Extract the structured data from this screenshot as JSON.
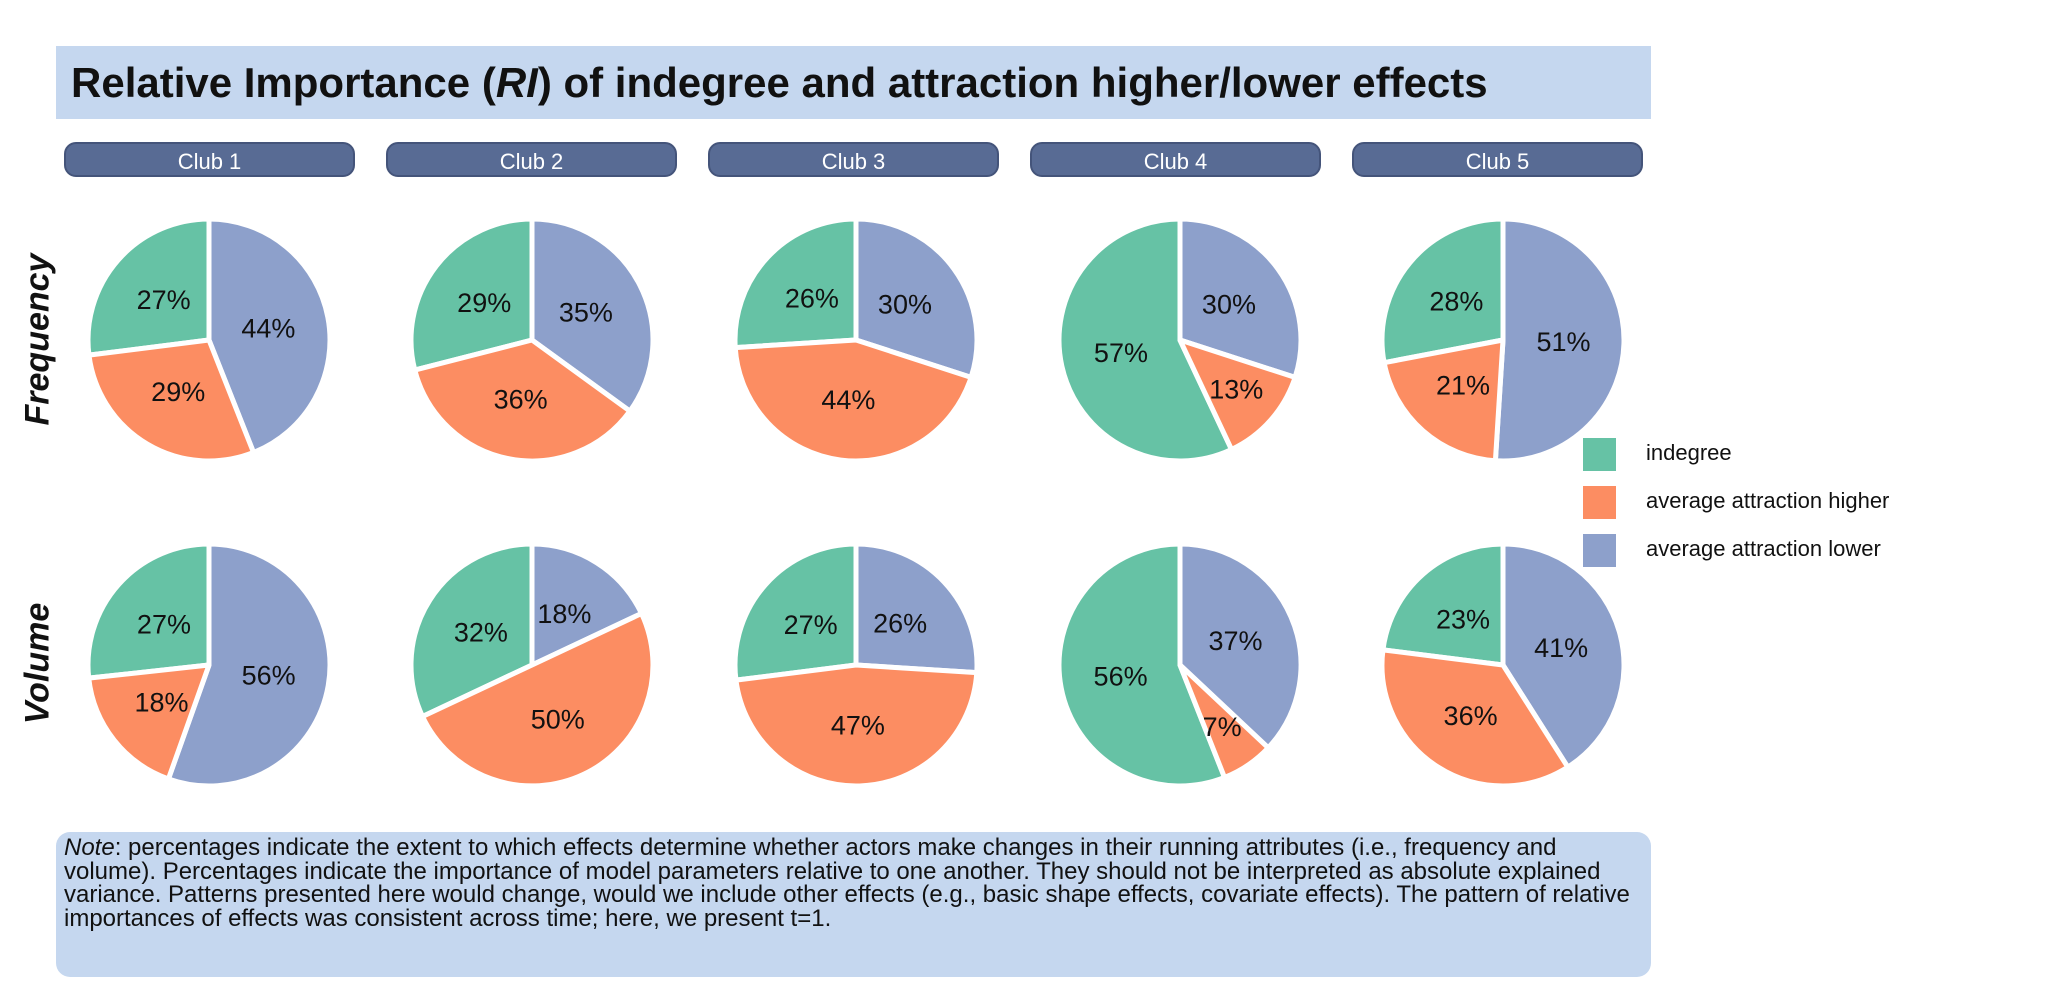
{
  "title": {
    "prefix": "Relative Importance (",
    "abbr": "RI",
    "suffix": ") of indegree and attraction higher/lower effects"
  },
  "clubs": [
    "Club 1",
    "Club 2",
    "Club 3",
    "Club 4",
    "Club 5"
  ],
  "rows": [
    "Frequency",
    "Volume"
  ],
  "colors": {
    "indegree": "#66c2a5",
    "higher": "#fc8d62",
    "lower": "#8da0cb",
    "title_bg": "#c5d7ef",
    "strip_bg": "#586b94"
  },
  "chart_data": {
    "type": "pie",
    "series_names": [
      "indegree",
      "average attraction higher",
      "average attraction lower"
    ],
    "panels": [
      {
        "row": "Frequency",
        "club": "Club 1",
        "values": [
          27,
          29,
          44
        ],
        "labels": [
          "27%",
          "29%",
          "44%"
        ]
      },
      {
        "row": "Frequency",
        "club": "Club 2",
        "values": [
          29,
          36,
          35
        ],
        "labels": [
          "29%",
          "36%",
          "35%"
        ]
      },
      {
        "row": "Frequency",
        "club": "Club 3",
        "values": [
          26,
          44,
          30
        ],
        "labels": [
          "26%",
          "44%",
          "30%"
        ]
      },
      {
        "row": "Frequency",
        "club": "Club 4",
        "values": [
          57,
          13,
          30
        ],
        "labels": [
          "57%",
          "13%",
          "30%"
        ]
      },
      {
        "row": "Frequency",
        "club": "Club 5",
        "values": [
          28,
          21,
          51
        ],
        "labels": [
          "28%",
          "21%",
          "51%"
        ]
      },
      {
        "row": "Volume",
        "club": "Club 1",
        "values": [
          27,
          18,
          56
        ],
        "labels": [
          "27%",
          "18%",
          "56%"
        ]
      },
      {
        "row": "Volume",
        "club": "Club 2",
        "values": [
          32,
          50,
          18
        ],
        "labels": [
          "32%",
          "50%",
          "18%"
        ]
      },
      {
        "row": "Volume",
        "club": "Club 3",
        "values": [
          27,
          47,
          26
        ],
        "labels": [
          "27%",
          "47%",
          "26%"
        ]
      },
      {
        "row": "Volume",
        "club": "Club 4",
        "values": [
          56,
          7,
          37
        ],
        "labels": [
          "56%",
          "7%",
          "37%"
        ]
      },
      {
        "row": "Volume",
        "club": "Club 5",
        "values": [
          23,
          36,
          41
        ],
        "labels": [
          "23%",
          "36%",
          "41%"
        ]
      }
    ]
  },
  "legend": [
    {
      "label": "indegree",
      "color": "#66c2a5"
    },
    {
      "label": "average attraction higher",
      "color": "#fc8d62"
    },
    {
      "label": "average attraction lower",
      "color": "#8da0cb"
    }
  ],
  "note": {
    "lead": "Note",
    "text": ": percentages indicate the extent to which effects determine whether actors make changes in their running attributes (i.e., frequency and volume). Percentages indicate the importance of model parameters relative to one another. They should not be interpreted as absolute explained variance. Patterns presented here would change, would we include other effects (e.g., basic shape effects, covariate effects). The pattern of relative importances of effects was consistent across time; here, we present t=1."
  }
}
